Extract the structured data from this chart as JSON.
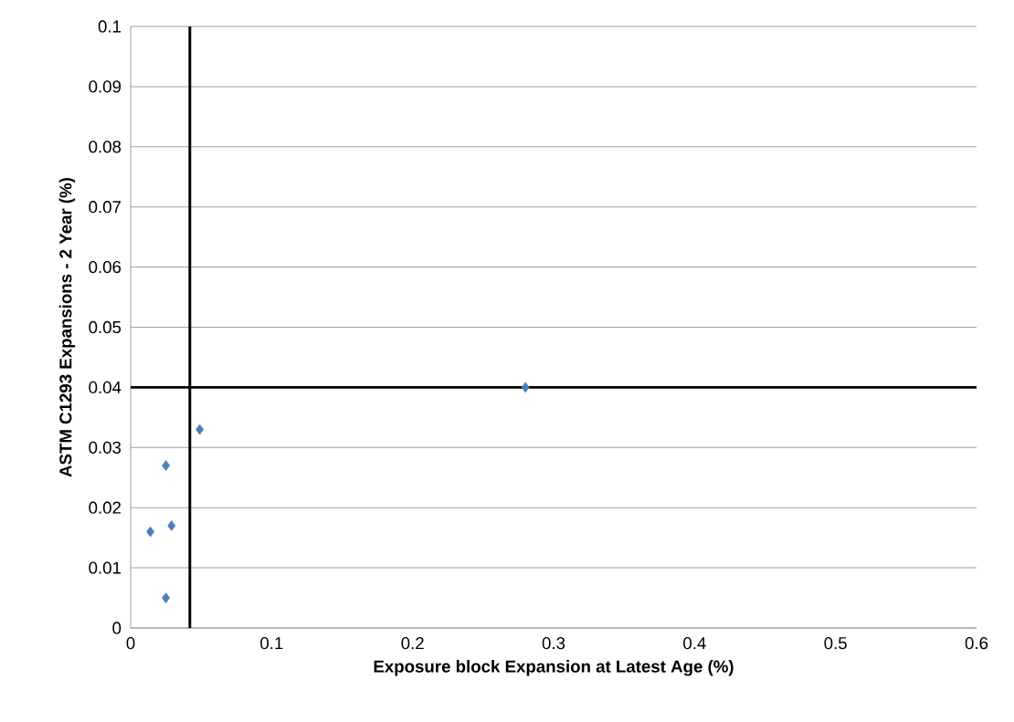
{
  "chart_data": {
    "type": "scatter",
    "xlabel": "Exposure block Expansion at Latest Age (%)",
    "ylabel": "ASTM C1293 Expansions - 2 Year (%)",
    "x": [
      0.014,
      0.025,
      0.029,
      0.025,
      0.049,
      0.28
    ],
    "series": [
      {
        "color": "#4a7ebb",
        "values": [
          0.016,
          0.027,
          0.017,
          0.005,
          0.033,
          0.04
        ]
      }
    ],
    "xlim": [
      0,
      0.6
    ],
    "xticks": [
      0,
      0.1,
      0.2,
      0.3,
      0.4,
      0.5,
      0.6
    ],
    "ylim": [
      0,
      0.1
    ],
    "yticks": [
      0,
      0.01,
      0.02,
      0.03,
      0.04,
      0.05,
      0.06,
      0.07,
      0.08,
      0.09,
      0.1
    ],
    "grid": "y",
    "marker": "diamond",
    "ref_lines": [
      {
        "axis": "x",
        "value": 0.042,
        "color": "#000000"
      },
      {
        "axis": "y",
        "value": 0.04,
        "color": "#000000"
      }
    ]
  }
}
